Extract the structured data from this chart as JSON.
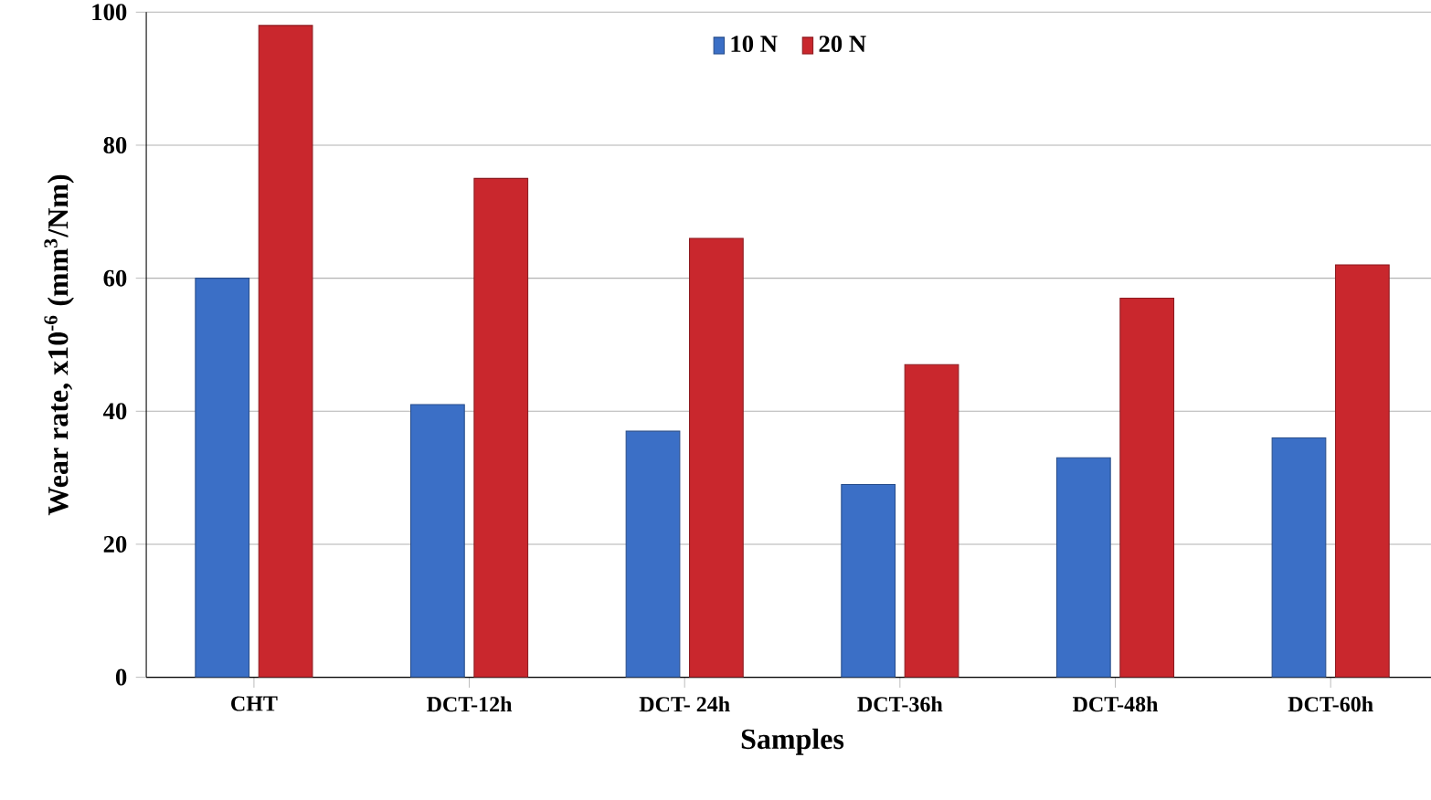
{
  "chart_data": {
    "type": "bar",
    "xlabel": "Samples",
    "ylabel": "Wear rate, x10$^{-6}$ (mm$^{3}$/Nm)",
    "categories": [
      "CHT",
      "DCT-12h",
      "DCT- 24h",
      "DCT-36h",
      "DCT-48h",
      "DCT-60h"
    ],
    "series": [
      {
        "name": "10 N",
        "color": "#3b6fc6",
        "values": [
          60,
          41,
          37,
          29,
          33,
          36
        ]
      },
      {
        "name": "20 N",
        "color": "#c9272d",
        "values": [
          98,
          75,
          66,
          47,
          57,
          62
        ]
      }
    ],
    "ylim": [
      0,
      100
    ],
    "yticks": [
      0,
      20,
      40,
      60,
      80,
      100
    ],
    "grid": "y",
    "legend": "top"
  }
}
